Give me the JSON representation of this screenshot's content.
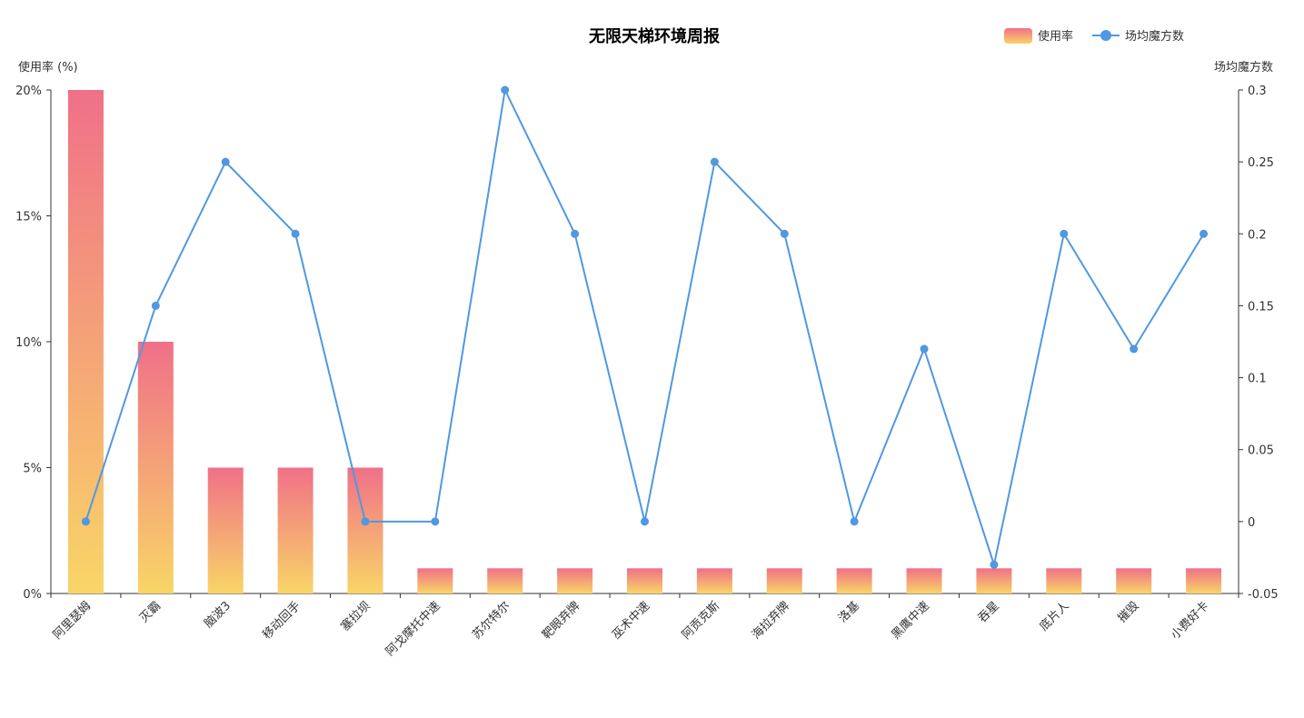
{
  "chart_data": {
    "type": "bar",
    "title": "无限天梯环境周报",
    "categories": [
      "阿里瑟姆",
      "灭霸",
      "脑波3",
      "移动回手",
      "塞拉坝",
      "阿戈摩托中速",
      "苏尔特尔",
      "靶眼弃牌",
      "巫术中速",
      "阿贡克斯",
      "海拉弃牌",
      "洛基",
      "黑鹰中速",
      "吞星",
      "底片人",
      "摧毁",
      "小费好卡"
    ],
    "ylabel_left": "使用率 (%)",
    "ylabel_right": "场均魔方数",
    "y_left_ticks": [
      "0%",
      "5%",
      "10%",
      "15%",
      "20%"
    ],
    "y_right_ticks": [
      "-0.05",
      "0",
      "0.05",
      "0.1",
      "0.15",
      "0.2",
      "0.25",
      "0.3"
    ],
    "ylim_left": [
      0,
      20
    ],
    "ylim_right": [
      -0.05,
      0.3
    ],
    "legend_position": "top-right",
    "series": [
      {
        "name": "使用率",
        "type": "bar",
        "axis": "left",
        "unit": "%",
        "values": [
          20,
          10,
          5,
          5,
          5,
          1,
          1,
          1,
          1,
          1,
          1,
          1,
          1,
          1,
          1,
          1,
          1
        ],
        "gradient_top": "#f07088",
        "gradient_bottom": "#f9d567"
      },
      {
        "name": "场均魔方数",
        "type": "line",
        "axis": "right",
        "values": [
          0,
          0.15,
          0.25,
          0.2,
          0,
          0,
          0.3,
          0.2,
          0,
          0.25,
          0.2,
          0,
          0.12,
          -0.03,
          0.2,
          0.12,
          0.2
        ],
        "color": "#5098e0"
      }
    ]
  }
}
